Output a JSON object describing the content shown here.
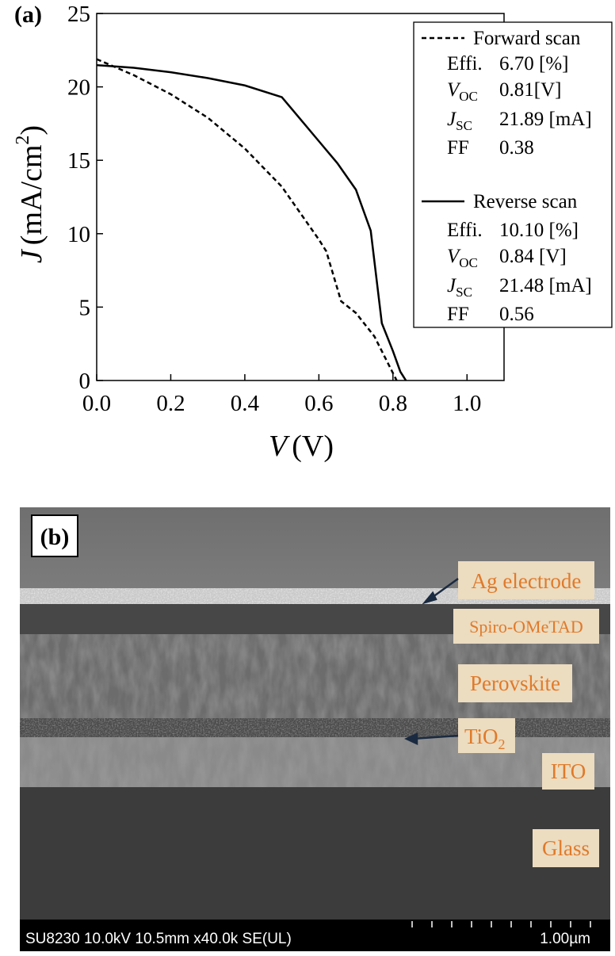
{
  "chart_data": {
    "type": "line",
    "panel_label": "(a)",
    "x_label": {
      "var": "V",
      "unit": "(V)"
    },
    "y_label": {
      "var": "J",
      "unit": "(mA/cm",
      "sup": "2",
      "close": ")"
    },
    "xlim": [
      0,
      1.1
    ],
    "ylim": [
      0,
      25
    ],
    "xticks": [
      {
        "value": 0,
        "label": "0.0"
      },
      0.2,
      0.4,
      0.6,
      0.8,
      {
        "value": 1,
        "label": "1.0"
      }
    ],
    "yticks": [
      0,
      5,
      10,
      15,
      20,
      25
    ],
    "series": [
      {
        "name": "Forward scan",
        "color": "#000000",
        "line_style": "dashed",
        "x": [
          0,
          0.1,
          0.2,
          0.3,
          0.4,
          0.5,
          0.6,
          0.62,
          0.66,
          0.7,
          0.75,
          0.78,
          0.81
        ],
        "values": [
          21.89,
          20.8,
          19.5,
          17.9,
          15.8,
          13.2,
          9.6,
          8.8,
          5.4,
          4.6,
          3.0,
          1.5,
          0
        ],
        "stats": [
          {
            "label": "Effi.",
            "value": "6.70 [%]"
          },
          {
            "label": "V",
            "sub": "OC",
            "value": "0.81[V]"
          },
          {
            "label": "J",
            "sub": "SC",
            "value": "21.89 [mA]"
          },
          {
            "label": "FF",
            "value": "0.38"
          }
        ]
      },
      {
        "name": "Reverse scan",
        "color": "#000000",
        "line_style": "solid",
        "x": [
          0,
          0.1,
          0.2,
          0.3,
          0.4,
          0.5,
          0.55,
          0.6,
          0.65,
          0.7,
          0.74,
          0.77,
          0.8,
          0.82,
          0.835
        ],
        "values": [
          21.48,
          21.3,
          21.0,
          20.6,
          20.1,
          19.3,
          17.8,
          16.3,
          14.8,
          13.0,
          10.2,
          3.9,
          2.0,
          0.6,
          0
        ],
        "stats": [
          {
            "label": "Effi.",
            "value": "10.10 [%]"
          },
          {
            "label": "V",
            "sub": "OC",
            "value": "0.84 [V]"
          },
          {
            "label": "J",
            "sub": "SC",
            "value": "21.48 [mA]"
          },
          {
            "label": "FF",
            "value": "0.56"
          }
        ]
      }
    ]
  },
  "image": {
    "panel_label": "(b)",
    "layers": [
      "Ag electrode",
      "Spiro-OMeTAD",
      "Perovskite",
      "ITO",
      "Glass"
    ],
    "tio2": {
      "main": "TiO",
      "sub": "2"
    },
    "info_bar": "SU8230 10.0kV 10.5mm x40.0k SE(UL)",
    "scale": "1.00µm"
  }
}
